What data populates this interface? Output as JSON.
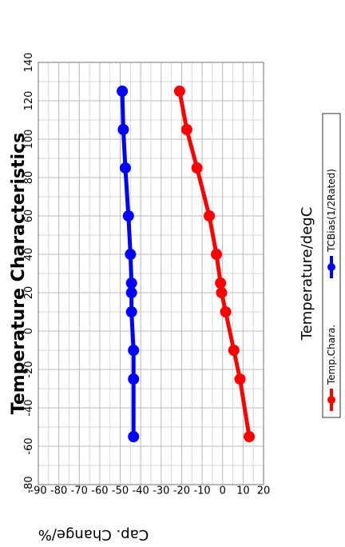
{
  "chart_data": {
    "type": "line",
    "title": "Temperature Characteristics",
    "xlabel": "Temperature/degC",
    "ylabel": "Cap. Change/%",
    "xlim": [
      -80,
      140
    ],
    "ylim": [
      -90,
      20
    ],
    "x_ticks": [
      "-80",
      "-60",
      "-40",
      "-20",
      "0",
      "20",
      "40",
      "60",
      "80",
      "100",
      "120",
      "140"
    ],
    "y_ticks": [
      "20",
      "10",
      "0",
      "-10",
      "-20",
      "-30",
      "-40",
      "-50",
      "-60",
      "-70",
      "-80",
      "-90"
    ],
    "grid": true,
    "legend_position": "bottom",
    "series": [
      {
        "name": "Temp.Chara.",
        "color": "#ff0000",
        "x": [
          -55,
          -25,
          -10,
          10,
          20,
          25,
          40,
          60,
          85,
          105,
          125
        ],
        "y": [
          13,
          8.5,
          5.5,
          1.5,
          -0.5,
          -1,
          -3,
          -6.5,
          -12.5,
          -17.5,
          -21
        ]
      },
      {
        "name": "TCBias(1/2Rated)",
        "color": "#0000ff",
        "x": [
          -55,
          -25,
          -10,
          10,
          20,
          25,
          40,
          60,
          85,
          105,
          125
        ],
        "y": [
          -43.5,
          -43.5,
          -43.5,
          -44.5,
          -44.5,
          -44.5,
          -45,
          -46,
          -47.5,
          -48.5,
          -49
        ]
      }
    ]
  }
}
